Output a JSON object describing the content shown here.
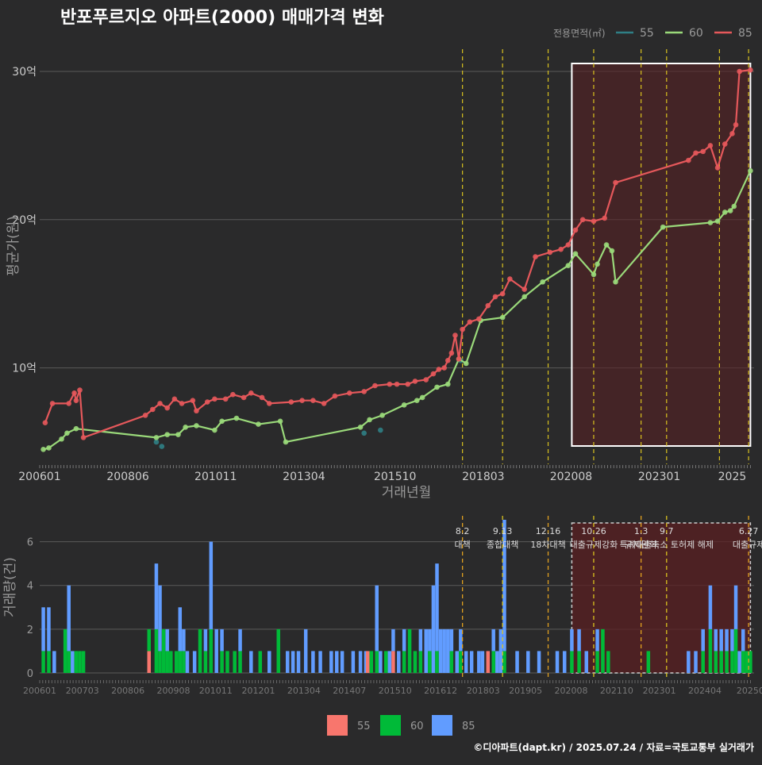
{
  "title": "반포푸르지오 아파트(2000) 매매가격 변화",
  "footer": "©디아파트(dapt.kr) / 2025.07.24 / 자료=국토교통부 실거래가",
  "colors": {
    "bg": "#2a2a2b",
    "s55": "#2f7f85",
    "s60": "#9ad97a",
    "s85": "#e5585b",
    "b55": "#f8766d",
    "b60": "#00ba38",
    "b85": "#619cff",
    "policy": "#d9c21f",
    "highlight": "#5a1f22"
  },
  "chart_data": [
    {
      "type": "line",
      "title": "반포푸르지오 아파트(2000) 매매가격 변화",
      "xlabel": "거래년월",
      "ylabel": "평균가(원)",
      "ylim": [
        3.5,
        31.5
      ],
      "yticks": [
        {
          "v": 10,
          "label": "10억"
        },
        {
          "v": 20,
          "label": "20억"
        },
        {
          "v": 30,
          "label": "30억"
        }
      ],
      "xrange": [
        2006.0,
        2025.6
      ],
      "xticks": [
        {
          "v": 2006.0,
          "label": "200601"
        },
        {
          "v": 2008.42,
          "label": "200806"
        },
        {
          "v": 2010.83,
          "label": "201011"
        },
        {
          "v": 2013.25,
          "label": "201304"
        },
        {
          "v": 2015.75,
          "label": "201510"
        },
        {
          "v": 2018.17,
          "label": "201803"
        },
        {
          "v": 2020.58,
          "label": "202008"
        },
        {
          "v": 2023.0,
          "label": "202301"
        },
        {
          "v": 2025.0,
          "label": "2025"
        }
      ],
      "legend_title": "전용면적(㎡)",
      "legend": [
        "55",
        "60",
        "85"
      ],
      "policy_lines": [
        2017.6,
        2018.7,
        2019.95,
        2021.2,
        2022.5,
        2023.2,
        2024.65,
        2025.45
      ],
      "highlight": [
        2020.6,
        2025.5
      ],
      "series": [
        {
          "name": "55",
          "x": [
            2009.2,
            2009.35,
            2014.9,
            2015.35,
            2017.55
          ],
          "y": [
            5.0,
            4.7,
            5.6,
            5.8,
            10.5
          ]
        },
        {
          "name": "60",
          "x": [
            2006.1,
            2006.25,
            2006.6,
            2006.75,
            2007.0,
            2009.2,
            2009.5,
            2009.8,
            2010.0,
            2010.3,
            2010.8,
            2011.0,
            2011.4,
            2012.0,
            2012.6,
            2012.75,
            2014.8,
            2015.05,
            2015.4,
            2016.0,
            2016.35,
            2016.5,
            2016.9,
            2017.2,
            2017.5,
            2017.7,
            2018.1,
            2018.7,
            2019.3,
            2019.8,
            2020.5,
            2020.7,
            2021.2,
            2021.3,
            2021.55,
            2021.7,
            2021.8,
            2023.1,
            2024.4,
            2024.6,
            2024.8,
            2024.95,
            2025.05,
            2025.5
          ],
          "y": [
            4.5,
            4.6,
            5.2,
            5.6,
            5.9,
            5.3,
            5.5,
            5.5,
            6.0,
            6.1,
            5.8,
            6.4,
            6.6,
            6.2,
            6.4,
            5.0,
            6.0,
            6.5,
            6.8,
            7.5,
            7.8,
            8.0,
            8.7,
            8.9,
            10.6,
            10.3,
            13.2,
            13.4,
            14.8,
            15.8,
            16.9,
            17.7,
            16.3,
            17.0,
            18.3,
            17.9,
            15.8,
            19.5,
            19.8,
            19.9,
            20.5,
            20.6,
            20.9,
            23.3
          ]
        },
        {
          "name": "85",
          "x": [
            2006.15,
            2006.35,
            2006.8,
            2006.95,
            2007.0,
            2007.1,
            2007.2,
            2008.9,
            2009.1,
            2009.3,
            2009.5,
            2009.7,
            2009.9,
            2010.2,
            2010.3,
            2010.6,
            2010.8,
            2011.1,
            2011.3,
            2011.6,
            2011.8,
            2012.1,
            2012.3,
            2012.9,
            2013.2,
            2013.5,
            2013.8,
            2014.1,
            2014.5,
            2014.9,
            2015.2,
            2015.6,
            2015.8,
            2016.1,
            2016.3,
            2016.6,
            2016.8,
            2016.95,
            2017.1,
            2017.2,
            2017.3,
            2017.4,
            2017.5,
            2017.6,
            2017.8,
            2018.05,
            2018.3,
            2018.5,
            2018.7,
            2018.9,
            2019.3,
            2019.6,
            2020.0,
            2020.3,
            2020.5,
            2020.7,
            2020.9,
            2021.2,
            2021.5,
            2021.8,
            2023.8,
            2024.0,
            2024.2,
            2024.4,
            2024.6,
            2024.8,
            2025.0,
            2025.1,
            2025.2,
            2025.5
          ],
          "y": [
            6.3,
            7.6,
            7.6,
            8.3,
            7.8,
            8.5,
            5.3,
            6.8,
            7.2,
            7.6,
            7.3,
            7.9,
            7.6,
            7.8,
            7.1,
            7.7,
            7.9,
            7.9,
            8.2,
            8.0,
            8.3,
            8.0,
            7.6,
            7.7,
            7.8,
            7.8,
            7.6,
            8.1,
            8.3,
            8.4,
            8.8,
            8.9,
            8.9,
            8.9,
            9.1,
            9.2,
            9.6,
            9.9,
            10.0,
            10.5,
            11.0,
            12.2,
            10.6,
            12.6,
            13.1,
            13.3,
            14.2,
            14.8,
            15.0,
            16.0,
            15.3,
            17.5,
            17.8,
            18.0,
            18.3,
            19.3,
            20.0,
            19.9,
            20.1,
            22.5,
            24.0,
            24.5,
            24.6,
            25.0,
            23.5,
            25.1,
            25.8,
            26.4,
            30.0,
            30.1
          ]
        }
      ]
    },
    {
      "type": "bar",
      "xlabel": "",
      "ylabel": "거래량(건)",
      "ylim": [
        0,
        7
      ],
      "yticks": [
        0,
        2,
        4,
        6
      ],
      "xticks": [
        {
          "v": 2006.0,
          "label": "200601"
        },
        {
          "v": 2007.17,
          "label": "200703"
        },
        {
          "v": 2008.42,
          "label": "200806"
        },
        {
          "v": 2009.67,
          "label": "200908"
        },
        {
          "v": 2010.83,
          "label": "201011"
        },
        {
          "v": 2012.0,
          "label": "201201"
        },
        {
          "v": 2013.25,
          "label": "201304"
        },
        {
          "v": 2014.5,
          "label": "201407"
        },
        {
          "v": 2015.75,
          "label": "201510"
        },
        {
          "v": 2017.0,
          "label": "201612"
        },
        {
          "v": 2018.17,
          "label": "201803"
        },
        {
          "v": 2019.33,
          "label": "201905"
        },
        {
          "v": 2020.58,
          "label": "202008"
        },
        {
          "v": 2021.83,
          "label": "202110"
        },
        {
          "v": 2023.0,
          "label": "202301"
        },
        {
          "v": 2024.25,
          "label": "202404"
        },
        {
          "v": 2025.5,
          "label": "20250"
        }
      ],
      "legend": [
        "55",
        "60",
        "85"
      ],
      "policies": [
        {
          "x": 2017.6,
          "date": "8.2",
          "name": "대책"
        },
        {
          "x": 2018.7,
          "date": "9.13",
          "name": "종합대책"
        },
        {
          "x": 2019.95,
          "date": "12.16",
          "name": "18차대책"
        },
        {
          "x": 2021.2,
          "date": "10.26",
          "name": "대출규제강화"
        },
        {
          "x": 2022.5,
          "date": "1.3",
          "name": "규제완화"
        },
        {
          "x": 2023.2,
          "date": "9.7",
          "name": "특례대출축소 토허제 해제"
        },
        {
          "x": 2025.45,
          "date": "6.27",
          "name": "대출규제"
        }
      ],
      "highlight": [
        2020.6,
        2025.5
      ],
      "bars": [
        [
          2006.1,
          0,
          1,
          2
        ],
        [
          2006.25,
          0,
          1,
          2
        ],
        [
          2006.4,
          0,
          0,
          1
        ],
        [
          2006.7,
          0,
          2,
          0
        ],
        [
          2006.8,
          0,
          1,
          3
        ],
        [
          2006.9,
          0,
          0,
          1
        ],
        [
          2007.0,
          0,
          1,
          0
        ],
        [
          2007.1,
          0,
          1,
          0
        ],
        [
          2007.2,
          0,
          1,
          0
        ],
        [
          2009.0,
          1,
          1,
          0
        ],
        [
          2009.2,
          0,
          2,
          3
        ],
        [
          2009.3,
          0,
          1,
          3
        ],
        [
          2009.4,
          0,
          2,
          0
        ],
        [
          2009.5,
          0,
          1,
          1
        ],
        [
          2009.6,
          0,
          1,
          0
        ],
        [
          2009.75,
          0,
          1,
          0
        ],
        [
          2009.85,
          0,
          1,
          2
        ],
        [
          2009.95,
          0,
          1,
          1
        ],
        [
          2010.05,
          0,
          0,
          1
        ],
        [
          2010.25,
          0,
          0,
          1
        ],
        [
          2010.4,
          0,
          2,
          0
        ],
        [
          2010.55,
          0,
          1,
          1
        ],
        [
          2010.7,
          0,
          2,
          4
        ],
        [
          2010.85,
          0,
          0,
          2
        ],
        [
          2011.0,
          0,
          1,
          1
        ],
        [
          2011.15,
          0,
          1,
          0
        ],
        [
          2011.35,
          0,
          1,
          0
        ],
        [
          2011.5,
          0,
          1,
          1
        ],
        [
          2011.8,
          0,
          0,
          1
        ],
        [
          2012.05,
          0,
          1,
          0
        ],
        [
          2012.3,
          0,
          0,
          1
        ],
        [
          2012.55,
          0,
          2,
          0
        ],
        [
          2012.8,
          0,
          0,
          1
        ],
        [
          2012.95,
          0,
          0,
          1
        ],
        [
          2013.1,
          0,
          0,
          1
        ],
        [
          2013.3,
          0,
          0,
          2
        ],
        [
          2013.5,
          0,
          0,
          1
        ],
        [
          2013.7,
          0,
          0,
          1
        ],
        [
          2014.0,
          0,
          0,
          1
        ],
        [
          2014.15,
          0,
          0,
          1
        ],
        [
          2014.3,
          0,
          0,
          1
        ],
        [
          2014.6,
          0,
          0,
          1
        ],
        [
          2014.8,
          0,
          0,
          1
        ],
        [
          2014.95,
          0,
          0,
          1
        ],
        [
          2015.0,
          1,
          0,
          0
        ],
        [
          2015.1,
          0,
          1,
          0
        ],
        [
          2015.25,
          0,
          1,
          3
        ],
        [
          2015.35,
          0,
          0,
          1
        ],
        [
          2015.5,
          0,
          1,
          0
        ],
        [
          2015.6,
          0,
          0,
          1
        ],
        [
          2015.7,
          1,
          0,
          1
        ],
        [
          2015.85,
          0,
          0,
          1
        ],
        [
          2016.0,
          0,
          1,
          1
        ],
        [
          2016.15,
          0,
          2,
          0
        ],
        [
          2016.3,
          0,
          1,
          0
        ],
        [
          2016.45,
          0,
          1,
          1
        ],
        [
          2016.6,
          0,
          0,
          2
        ],
        [
          2016.7,
          0,
          1,
          1
        ],
        [
          2016.8,
          0,
          0,
          4
        ],
        [
          2016.9,
          0,
          1,
          4
        ],
        [
          2017.0,
          0,
          0,
          2
        ],
        [
          2017.1,
          0,
          0,
          2
        ],
        [
          2017.2,
          0,
          0,
          2
        ],
        [
          2017.3,
          0,
          1,
          1
        ],
        [
          2017.45,
          0,
          0,
          1
        ],
        [
          2017.55,
          0,
          1,
          1
        ],
        [
          2017.7,
          0,
          0,
          1
        ],
        [
          2017.85,
          0,
          0,
          1
        ],
        [
          2018.05,
          0,
          0,
          1
        ],
        [
          2018.15,
          0,
          0,
          1
        ],
        [
          2018.3,
          1,
          0,
          0
        ],
        [
          2018.45,
          0,
          1,
          1
        ],
        [
          2018.55,
          0,
          0,
          1
        ],
        [
          2018.65,
          0,
          0,
          2
        ],
        [
          2018.75,
          0,
          1,
          6
        ],
        [
          2019.1,
          0,
          0,
          1
        ],
        [
          2019.4,
          0,
          0,
          1
        ],
        [
          2019.7,
          0,
          0,
          1
        ],
        [
          2020.2,
          0,
          0,
          1
        ],
        [
          2020.4,
          0,
          0,
          1
        ],
        [
          2020.6,
          0,
          1,
          1
        ],
        [
          2020.8,
          0,
          1,
          1
        ],
        [
          2021.0,
          0,
          0,
          1
        ],
        [
          2021.3,
          0,
          1,
          1
        ],
        [
          2021.45,
          0,
          2,
          0
        ],
        [
          2021.6,
          0,
          1,
          0
        ],
        [
          2022.7,
          0,
          1,
          0
        ],
        [
          2023.8,
          0,
          0,
          1
        ],
        [
          2024.0,
          0,
          0,
          1
        ],
        [
          2024.2,
          0,
          1,
          1
        ],
        [
          2024.4,
          0,
          2,
          2
        ],
        [
          2024.55,
          0,
          1,
          1
        ],
        [
          2024.7,
          0,
          1,
          1
        ],
        [
          2024.85,
          0,
          1,
          1
        ],
        [
          2025.0,
          0,
          1,
          1
        ],
        [
          2025.1,
          0,
          2,
          2
        ],
        [
          2025.2,
          0,
          0,
          1
        ],
        [
          2025.3,
          0,
          1,
          1
        ],
        [
          2025.4,
          0,
          1,
          0
        ],
        [
          2025.5,
          0,
          1,
          0
        ]
      ]
    }
  ]
}
